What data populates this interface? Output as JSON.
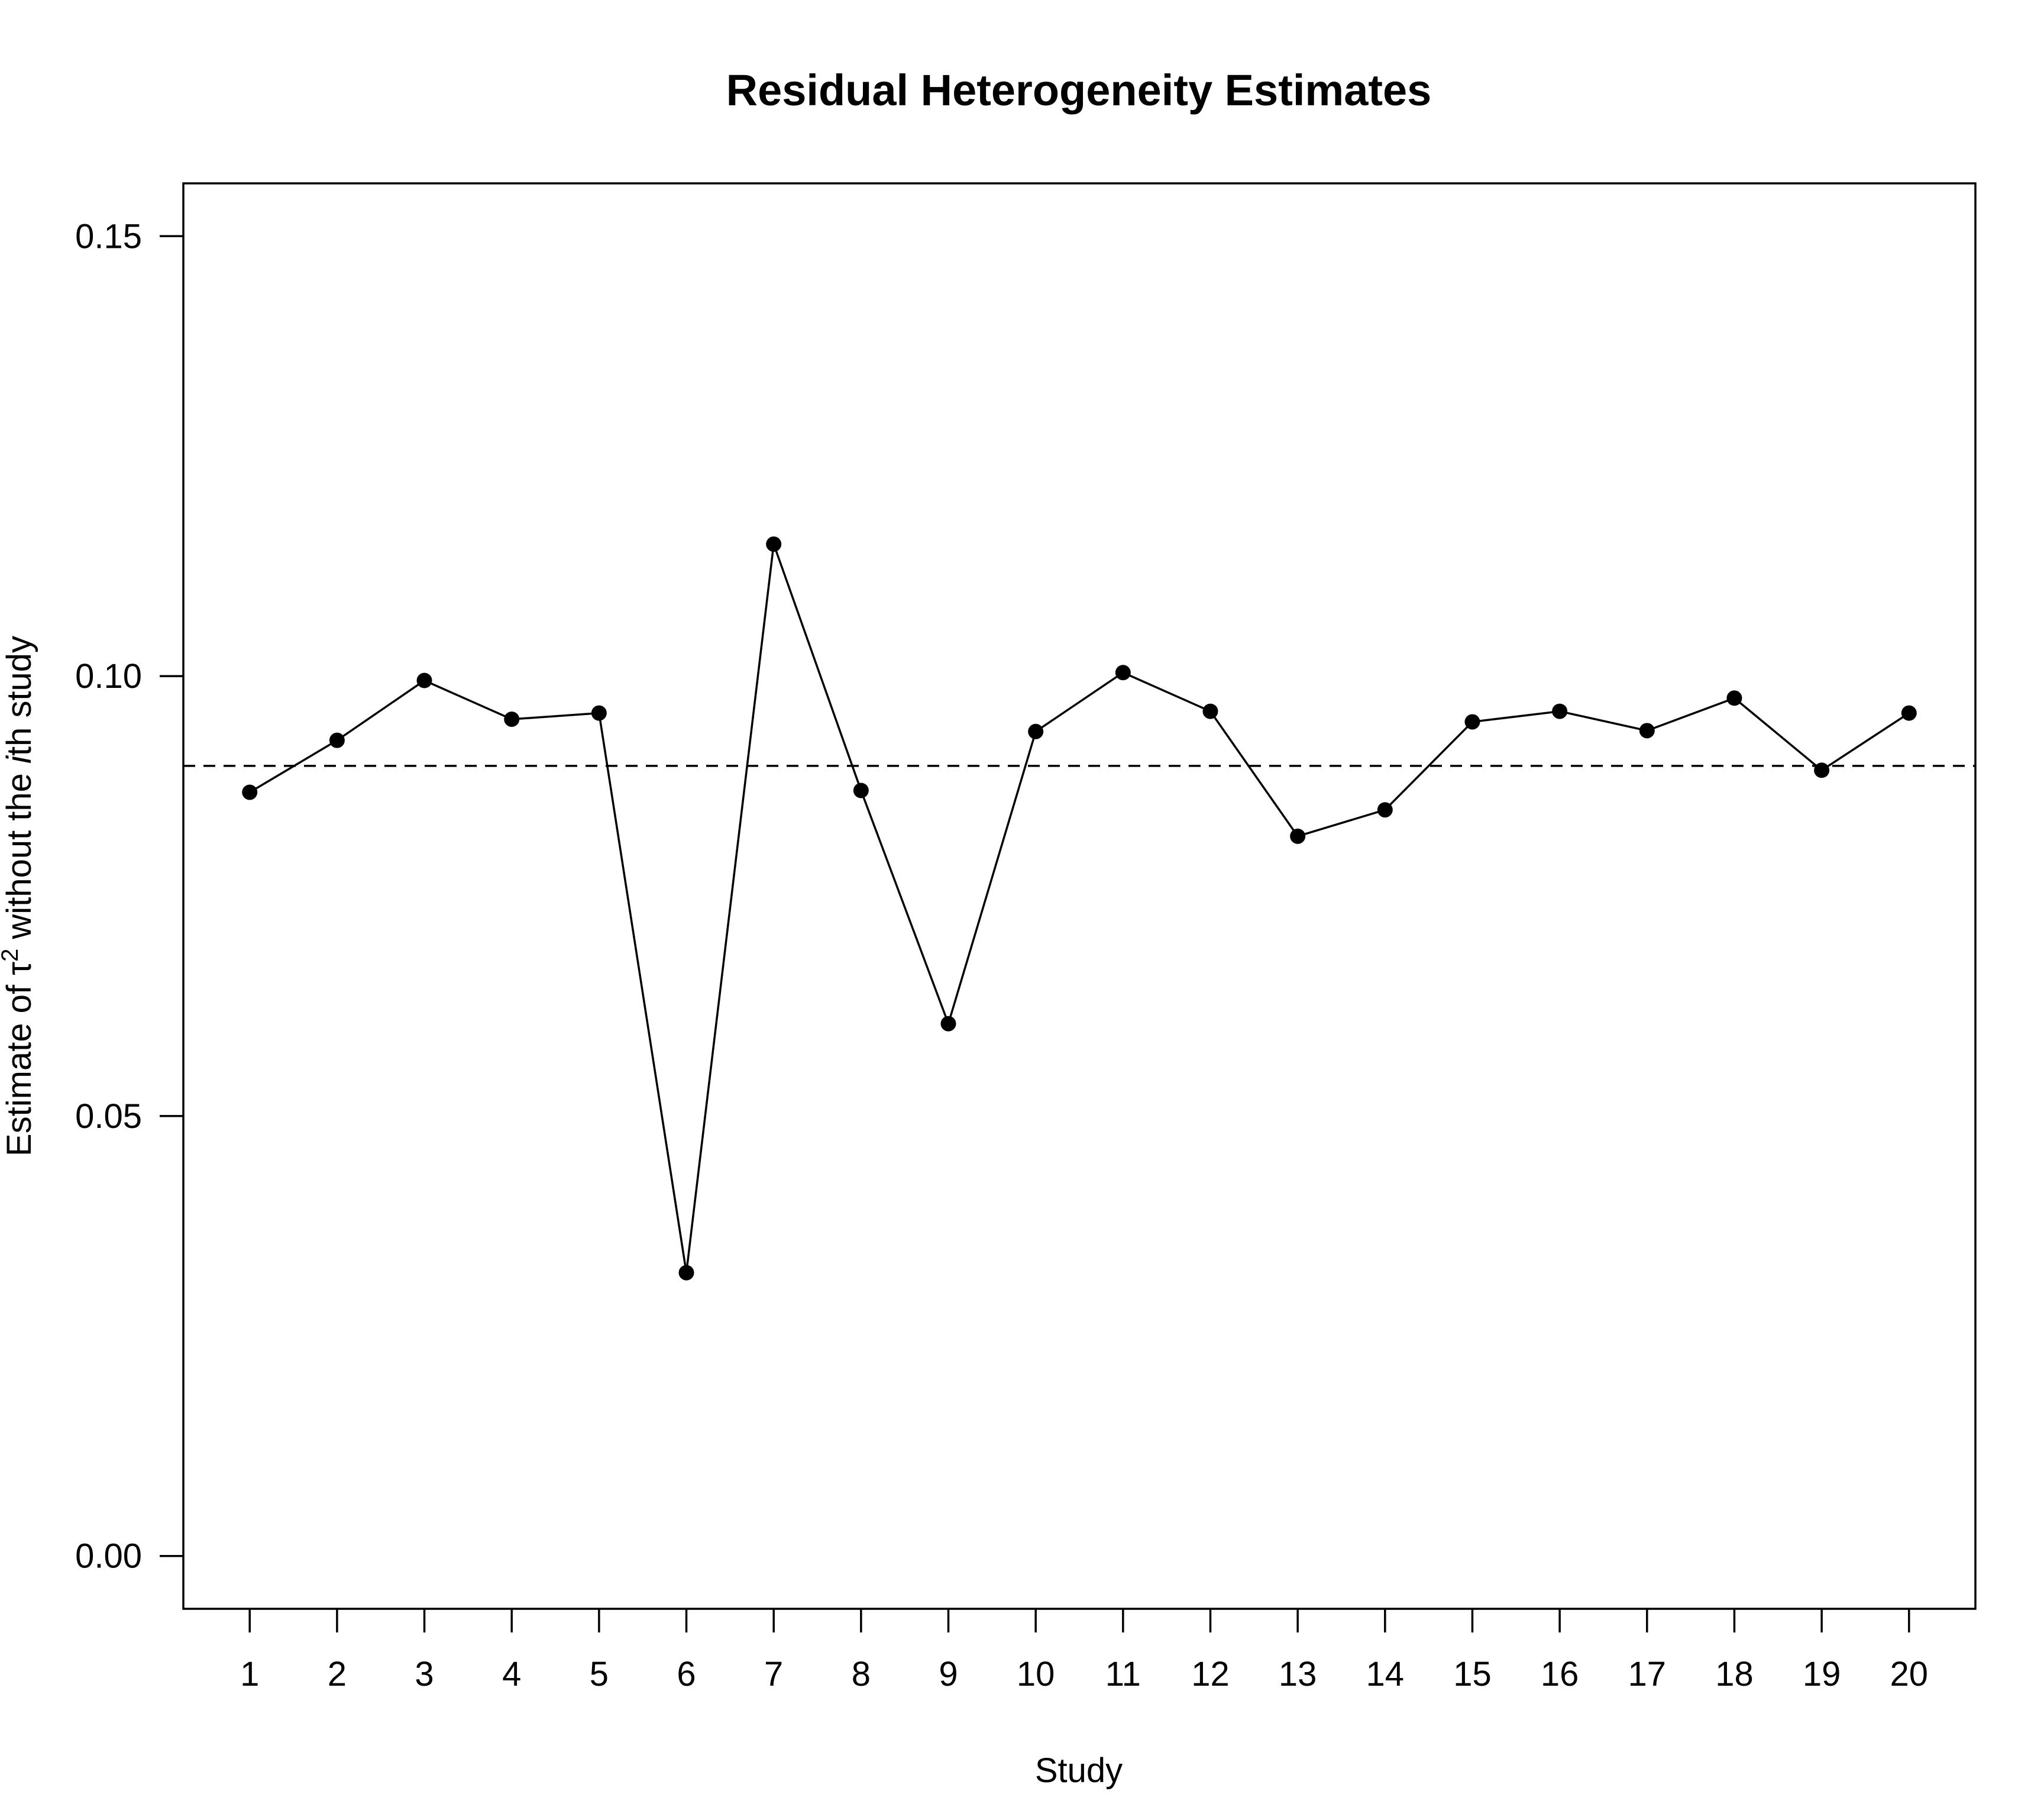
{
  "chart_data": {
    "type": "line",
    "title": "Residual Heterogeneity Estimates",
    "xlabel": "Study",
    "ylabel": {
      "prefix": "Estimate of τ",
      "superscript": "2",
      "middle": " without the ",
      "italic": "i",
      "suffix": "th study"
    },
    "x": [
      1,
      2,
      3,
      4,
      5,
      6,
      7,
      8,
      9,
      10,
      11,
      12,
      13,
      14,
      15,
      16,
      17,
      18,
      19,
      20
    ],
    "x_tick_labels": [
      "1",
      "2",
      "3",
      "4",
      "5",
      "6",
      "7",
      "8",
      "9",
      "10",
      "11",
      "12",
      "13",
      "14",
      "15",
      "16",
      "17",
      "18",
      "19",
      "20"
    ],
    "values": [
      0.0868,
      0.0927,
      0.0995,
      0.0951,
      0.0958,
      0.0322,
      0.115,
      0.087,
      0.0605,
      0.0937,
      0.1004,
      0.096,
      0.0818,
      0.0848,
      0.0948,
      0.096,
      0.0938,
      0.0975,
      0.0893,
      0.0958
    ],
    "reference_line": {
      "y": 0.0898,
      "style": "dashed"
    },
    "y_ticks": [
      0.0,
      0.05,
      0.1,
      0.15
    ],
    "y_tick_labels": [
      "0.00",
      "0.05",
      "0.10",
      "0.15"
    ],
    "xlim": [
      0.24,
      20.76
    ],
    "ylim": [
      -0.006,
      0.156
    ],
    "grid": false,
    "legend": "none",
    "marker": "filled-circle",
    "color": "#000000"
  }
}
